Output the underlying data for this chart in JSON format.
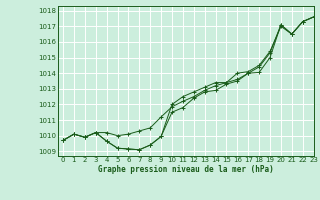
{
  "title": "Graphe pression niveau de la mer (hPa)",
  "bg_color": "#cceedd",
  "grid_color": "#ffffff",
  "line_color": "#1a5c1a",
  "xlim": [
    -0.5,
    23
  ],
  "ylim": [
    1008.7,
    1018.3
  ],
  "yticks": [
    1009,
    1010,
    1011,
    1012,
    1013,
    1014,
    1015,
    1016,
    1017,
    1018
  ],
  "xticks": [
    0,
    1,
    2,
    3,
    4,
    5,
    6,
    7,
    8,
    9,
    10,
    11,
    12,
    13,
    14,
    15,
    16,
    17,
    18,
    19,
    20,
    21,
    22,
    23
  ],
  "series": [
    [
      1009.7,
      1010.1,
      1009.9,
      1010.2,
      1009.65,
      1009.2,
      1009.15,
      1009.1,
      1009.4,
      1009.95,
      1011.5,
      1011.8,
      1012.4,
      1012.8,
      1012.9,
      1013.3,
      1013.5,
      1014.0,
      1014.05,
      1015.0,
      1017.1,
      1016.5,
      1017.3,
      1017.6
    ],
    [
      1009.7,
      1010.1,
      1009.9,
      1010.2,
      1010.2,
      1010.0,
      1010.1,
      1010.3,
      1010.5,
      1011.2,
      1011.85,
      1012.2,
      1012.5,
      1012.9,
      1013.2,
      1013.4,
      1014.0,
      1014.1,
      1014.5,
      1015.4,
      1017.0,
      1016.5,
      1017.3,
      1017.6
    ],
    [
      1009.7,
      1010.1,
      1009.9,
      1010.2,
      1009.65,
      1009.2,
      1009.15,
      1009.1,
      1009.4,
      1009.95,
      1012.0,
      1012.5,
      1012.8,
      1013.1,
      1013.4,
      1013.4,
      1013.6,
      1014.0,
      1014.4,
      1015.3,
      1017.1,
      1016.5,
      1017.3,
      1017.6
    ]
  ]
}
